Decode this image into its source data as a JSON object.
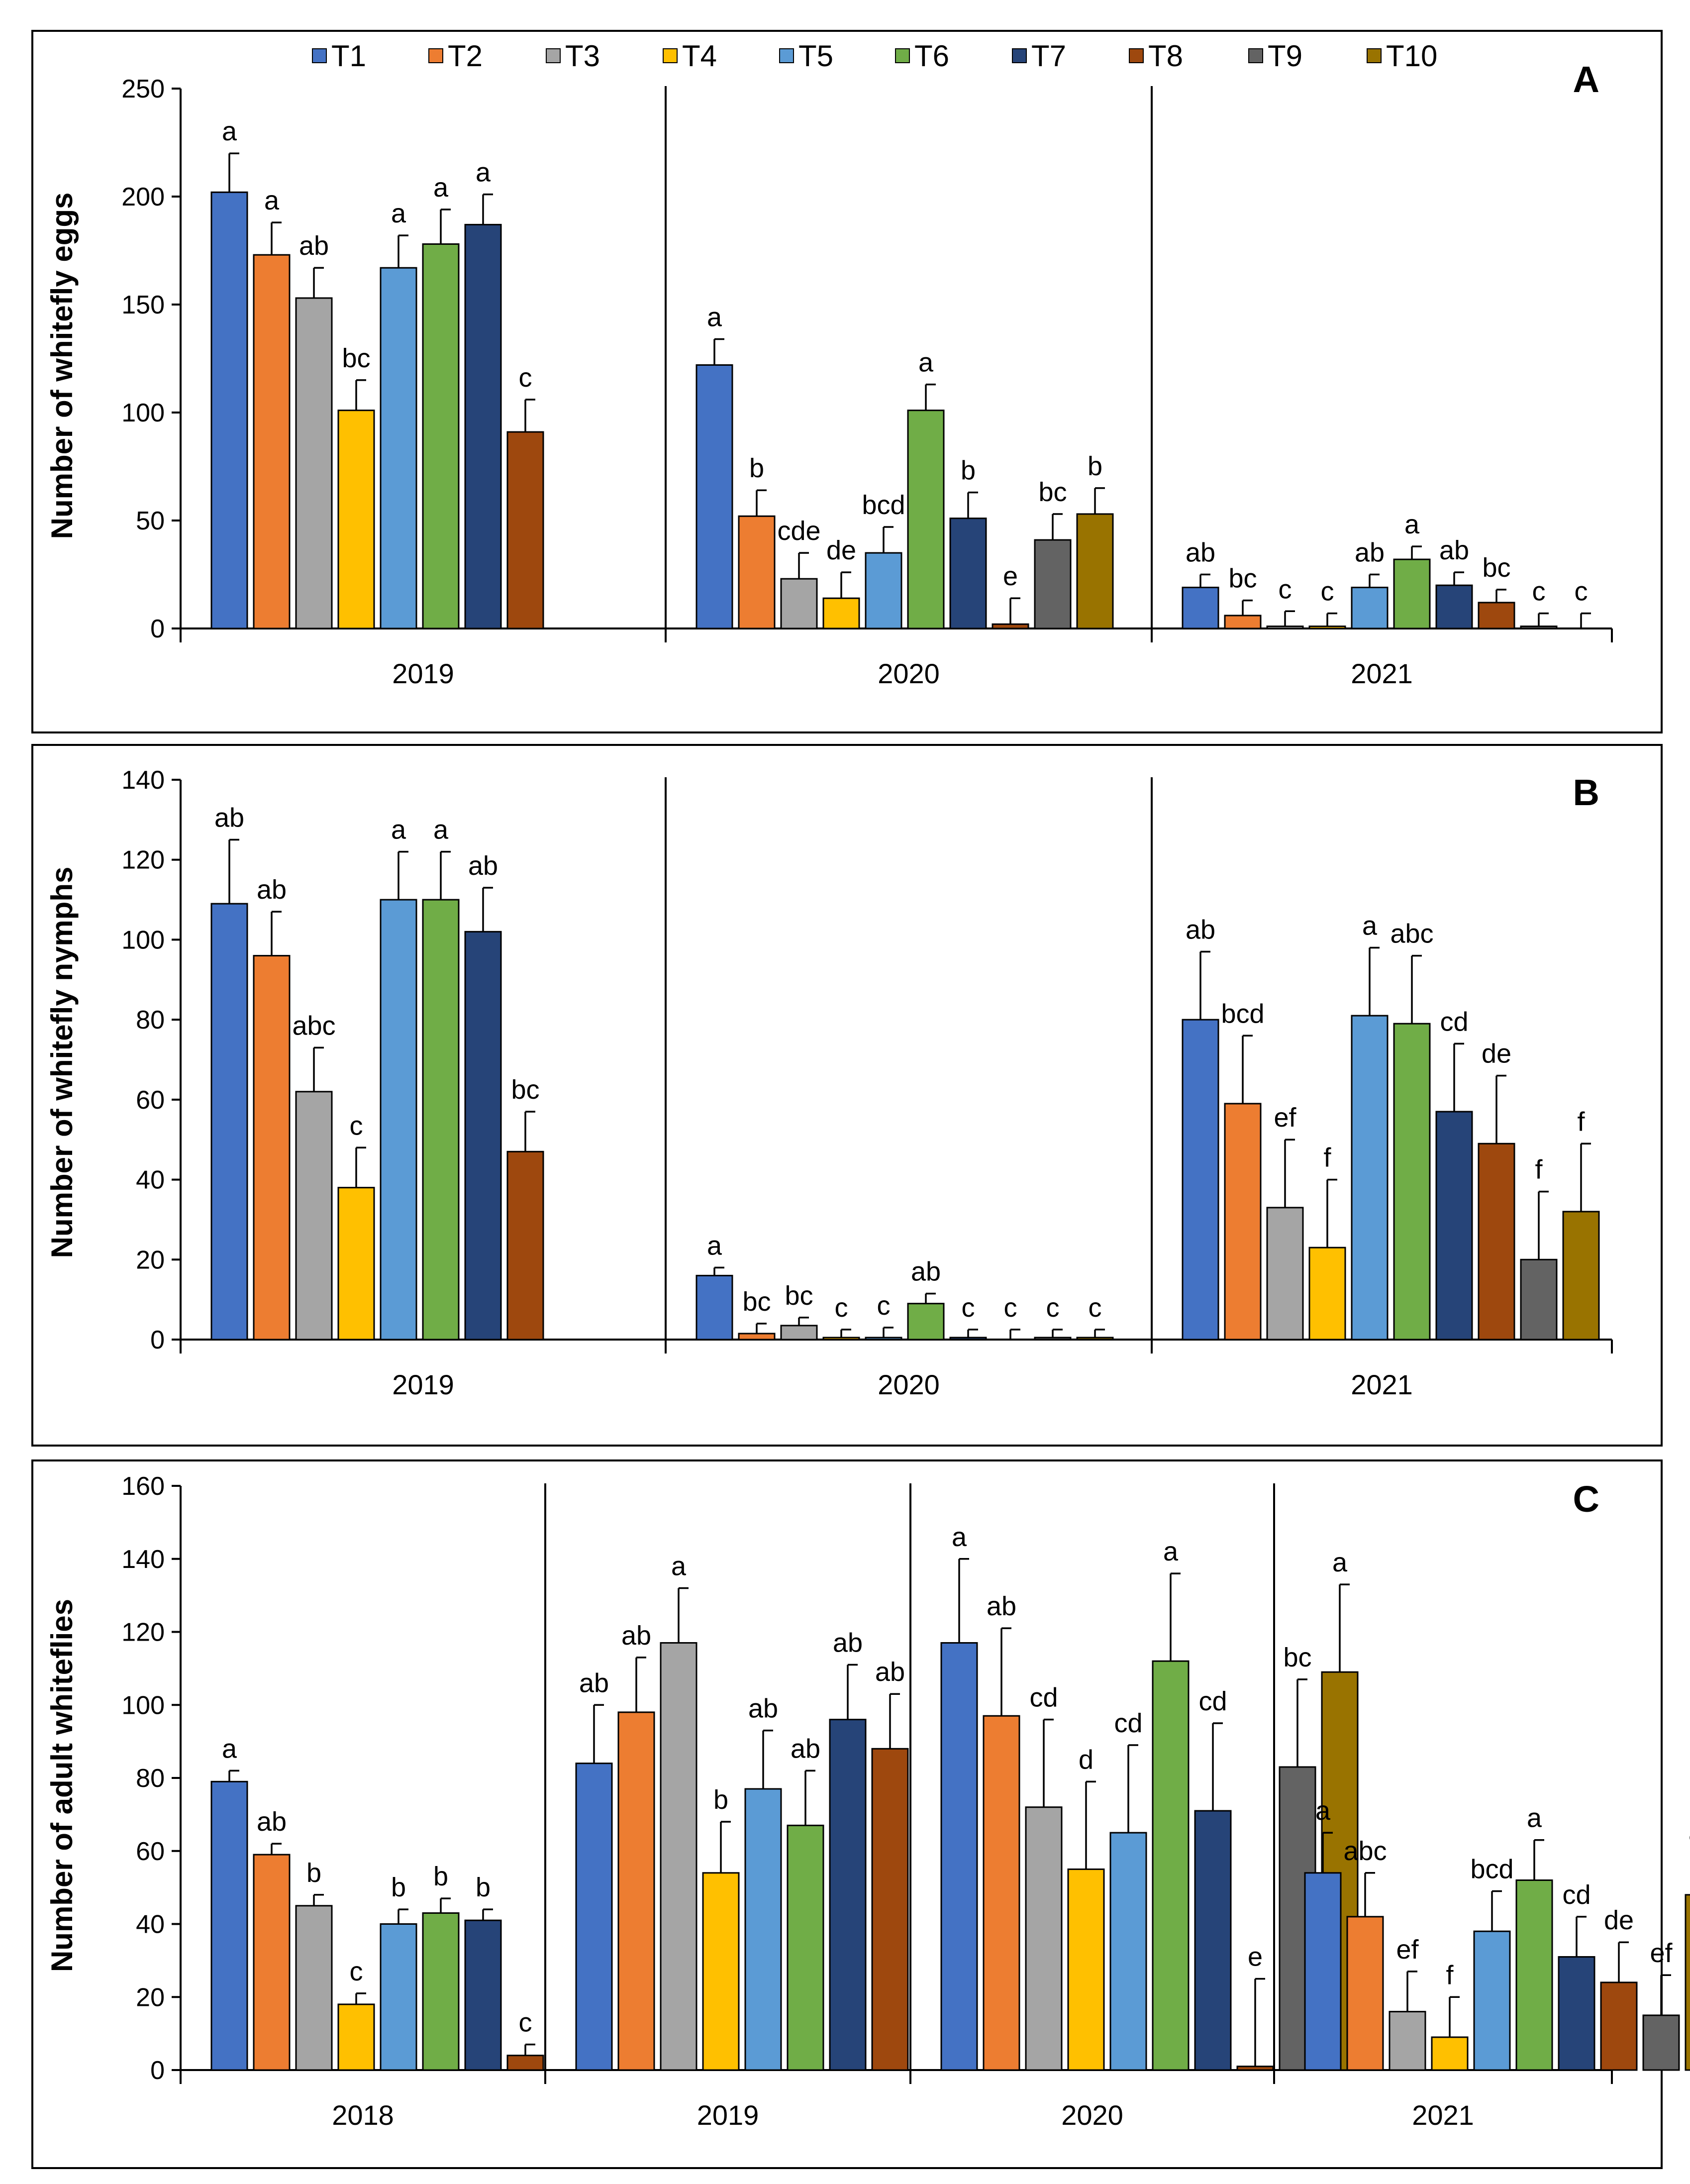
{
  "chart_data": [
    {
      "type": "bar",
      "panel": "A",
      "ylabel": "Number of whitefly eggs",
      "ylim": [
        0,
        250
      ],
      "yticks": [
        0,
        50,
        100,
        150,
        200,
        250
      ],
      "groups": [
        "2019",
        "2020",
        "2021"
      ],
      "series": [
        {
          "name": "T1",
          "color": "#4472C4",
          "values": [
            202,
            122,
            19
          ],
          "err": [
            18,
            12,
            6
          ],
          "letters": [
            "a",
            "a",
            "ab"
          ]
        },
        {
          "name": "T2",
          "color": "#ED7D31",
          "values": [
            173,
            52,
            6
          ],
          "err": [
            15,
            12,
            7
          ],
          "letters": [
            "a",
            "b",
            "bc"
          ]
        },
        {
          "name": "T3",
          "color": "#A5A5A5",
          "values": [
            153,
            23,
            1
          ],
          "err": [
            14,
            12,
            7
          ],
          "letters": [
            "ab",
            "cde",
            "c"
          ]
        },
        {
          "name": "T4",
          "color": "#FFC000",
          "values": [
            101,
            14,
            1
          ],
          "err": [
            14,
            12,
            6
          ],
          "letters": [
            "bc",
            "de",
            "c"
          ]
        },
        {
          "name": "T5",
          "color": "#5B9BD5",
          "values": [
            167,
            35,
            19
          ],
          "err": [
            15,
            12,
            6
          ],
          "letters": [
            "a",
            "bcd",
            "ab"
          ]
        },
        {
          "name": "T6",
          "color": "#70AD47",
          "values": [
            178,
            101,
            32
          ],
          "err": [
            16,
            12,
            6
          ],
          "letters": [
            "a",
            "a",
            "a"
          ]
        },
        {
          "name": "T7",
          "color": "#264478",
          "values": [
            187,
            51,
            20
          ],
          "err": [
            14,
            12,
            6
          ],
          "letters": [
            "a",
            "b",
            "ab"
          ]
        },
        {
          "name": "T8",
          "color": "#9E480E",
          "values": [
            91,
            2,
            12
          ],
          "err": [
            15,
            12,
            6
          ],
          "letters": [
            "c",
            "e",
            "bc"
          ]
        },
        {
          "name": "T9",
          "color": "#636363",
          "values": [
            null,
            41,
            1
          ],
          "err": [
            null,
            12,
            6
          ],
          "letters": [
            null,
            "bc",
            "c"
          ]
        },
        {
          "name": "T10",
          "color": "#997300",
          "values": [
            null,
            53,
            0
          ],
          "err": [
            null,
            12,
            7
          ],
          "letters": [
            null,
            "b",
            "c"
          ]
        }
      ]
    },
    {
      "type": "bar",
      "panel": "B",
      "ylabel": "Number of whitefly nymphs",
      "ylim": [
        0,
        140
      ],
      "yticks": [
        0,
        20,
        40,
        60,
        80,
        100,
        120,
        140
      ],
      "groups": [
        "2019",
        "2020",
        "2021"
      ],
      "series": [
        {
          "name": "T1",
          "color": "#4472C4",
          "values": [
            109,
            16,
            80
          ],
          "err": [
            16,
            2,
            17
          ],
          "letters": [
            "ab",
            "a",
            "ab"
          ]
        },
        {
          "name": "T2",
          "color": "#ED7D31",
          "values": [
            96,
            1.5,
            59
          ],
          "err": [
            11,
            2.5,
            17
          ],
          "letters": [
            "ab",
            "bc",
            "bcd"
          ]
        },
        {
          "name": "T3",
          "color": "#A5A5A5",
          "values": [
            62,
            3.5,
            33
          ],
          "err": [
            11,
            2,
            17
          ],
          "letters": [
            "abc",
            "bc",
            "ef"
          ]
        },
        {
          "name": "T4",
          "color": "#FFC000",
          "values": [
            38,
            0.5,
            23
          ],
          "err": [
            10,
            2,
            17
          ],
          "letters": [
            "c",
            "c",
            "f"
          ]
        },
        {
          "name": "T5",
          "color": "#5B9BD5",
          "values": [
            110,
            0.5,
            81
          ],
          "err": [
            12,
            2.5,
            17
          ],
          "letters": [
            "a",
            "c",
            "a"
          ]
        },
        {
          "name": "T6",
          "color": "#70AD47",
          "values": [
            110,
            9,
            79
          ],
          "err": [
            12,
            2.5,
            17
          ],
          "letters": [
            "a",
            "ab",
            "abc"
          ]
        },
        {
          "name": "T7",
          "color": "#264478",
          "values": [
            102,
            0.5,
            57
          ],
          "err": [
            11,
            2,
            17
          ],
          "letters": [
            "ab",
            "c",
            "cd"
          ]
        },
        {
          "name": "T8",
          "color": "#9E480E",
          "values": [
            47,
            0,
            49
          ],
          "err": [
            10,
            2.5,
            17
          ],
          "letters": [
            "bc",
            "c",
            "de"
          ]
        },
        {
          "name": "T9",
          "color": "#636363",
          "values": [
            null,
            0.5,
            20
          ],
          "err": [
            null,
            2,
            17
          ],
          "letters": [
            null,
            "c",
            "f"
          ]
        },
        {
          "name": "T10",
          "color": "#997300",
          "values": [
            null,
            0.5,
            32
          ],
          "err": [
            null,
            2,
            17
          ],
          "letters": [
            null,
            "c",
            "f"
          ]
        }
      ]
    },
    {
      "type": "bar",
      "panel": "C",
      "ylabel": "Number of adult whiteflies",
      "ylim": [
        0,
        160
      ],
      "yticks": [
        0,
        20,
        40,
        60,
        80,
        100,
        120,
        140,
        160
      ],
      "groups": [
        "2018",
        "2019",
        "2020",
        "2021"
      ],
      "series": [
        {
          "name": "T1",
          "color": "#4472C4",
          "values": [
            79,
            84,
            117,
            54
          ],
          "err": [
            3,
            16,
            23,
            11
          ],
          "letters": [
            "a",
            "ab",
            "a",
            "a"
          ]
        },
        {
          "name": "T2",
          "color": "#ED7D31",
          "values": [
            59,
            98,
            97,
            42
          ],
          "err": [
            3,
            15,
            24,
            12
          ],
          "letters": [
            "ab",
            "ab",
            "ab",
            "abc"
          ]
        },
        {
          "name": "T3",
          "color": "#A5A5A5",
          "values": [
            45,
            117,
            72,
            16
          ],
          "err": [
            3,
            15,
            24,
            11
          ],
          "letters": [
            "b",
            "a",
            "cd",
            "ef"
          ]
        },
        {
          "name": "T4",
          "color": "#FFC000",
          "values": [
            18,
            54,
            55,
            9
          ],
          "err": [
            3,
            14,
            24,
            11
          ],
          "letters": [
            "c",
            "b",
            "d",
            "f"
          ]
        },
        {
          "name": "T5",
          "color": "#5B9BD5",
          "values": [
            40,
            77,
            65,
            38
          ],
          "err": [
            4,
            16,
            24,
            11
          ],
          "letters": [
            "b",
            "ab",
            "cd",
            "bcd"
          ]
        },
        {
          "name": "T6",
          "color": "#70AD47",
          "values": [
            43,
            67,
            112,
            52
          ],
          "err": [
            4,
            15,
            24,
            11
          ],
          "letters": [
            "b",
            "ab",
            "a",
            "a"
          ]
        },
        {
          "name": "T7",
          "color": "#264478",
          "values": [
            41,
            96,
            71,
            31
          ],
          "err": [
            3,
            15,
            24,
            11
          ],
          "letters": [
            "b",
            "ab",
            "cd",
            "cd"
          ]
        },
        {
          "name": "T8",
          "color": "#9E480E",
          "values": [
            4,
            88,
            1,
            24
          ],
          "err": [
            3,
            15,
            24,
            11
          ],
          "letters": [
            "c",
            "ab",
            "e",
            "de"
          ]
        },
        {
          "name": "T9",
          "color": "#636363",
          "values": [
            null,
            null,
            83,
            15
          ],
          "err": [
            null,
            null,
            24,
            11
          ],
          "letters": [
            null,
            null,
            "bc",
            "ef"
          ]
        },
        {
          "name": "T10",
          "color": "#997300",
          "values": [
            null,
            null,
            109,
            48
          ],
          "err": [
            null,
            null,
            24,
            11
          ],
          "letters": [
            null,
            null,
            "a",
            "ab"
          ]
        }
      ]
    }
  ]
}
